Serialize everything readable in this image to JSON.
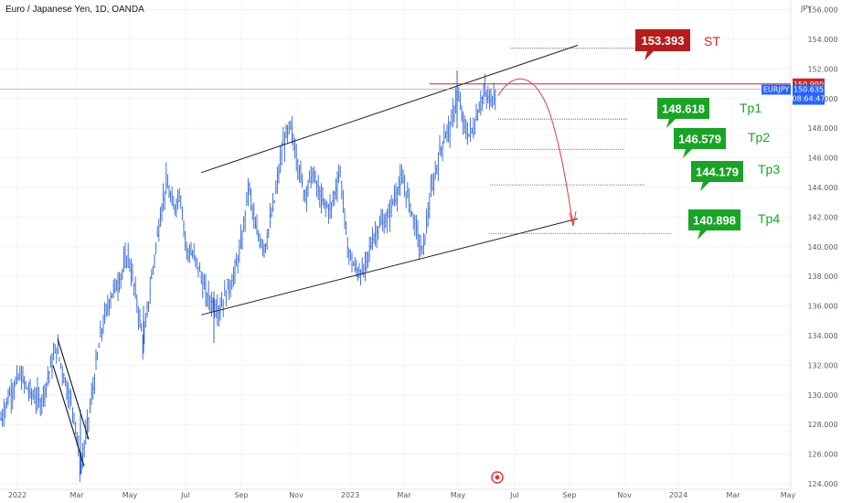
{
  "chart_data": {
    "type": "bar",
    "title": "Euro / Japanese Yen, 1D, OANDA",
    "currency": "JPY",
    "x_tick_labels": [
      "2022",
      "Mar",
      "May",
      "Jul",
      "Sep",
      "Nov",
      "2023",
      "Mar",
      "May",
      "Jul",
      "Sep",
      "Nov",
      "2024",
      "Mar",
      "May"
    ],
    "y_tick_labels": [
      "156.000",
      "154.000",
      "152.000",
      "150.000",
      "148.000",
      "146.000",
      "144.000",
      "142.000",
      "140.000",
      "138.000",
      "136.000",
      "134.000",
      "132.000",
      "130.000",
      "128.000",
      "126.000",
      "124.000"
    ],
    "ylim": [
      123.5,
      157
    ],
    "price_path": [
      [
        0,
        128.2
      ],
      [
        10,
        130.0
      ],
      [
        22,
        131.3
      ],
      [
        32,
        130.2
      ],
      [
        45,
        129.5
      ],
      [
        55,
        131.8
      ],
      [
        62,
        133.2
      ],
      [
        72,
        130.8
      ],
      [
        82,
        128.5
      ],
      [
        88,
        124.9
      ],
      [
        94,
        127.2
      ],
      [
        102,
        130.5
      ],
      [
        110,
        134.0
      ],
      [
        120,
        136.5
      ],
      [
        132,
        138.0
      ],
      [
        140,
        139.5
      ],
      [
        150,
        136.2
      ],
      [
        157,
        133.4
      ],
      [
        165,
        137.5
      ],
      [
        175,
        142.0
      ],
      [
        182,
        144.3
      ],
      [
        190,
        142.5
      ],
      [
        197,
        143.8
      ],
      [
        204,
        139.8
      ],
      [
        210,
        139.5
      ],
      [
        218,
        138.5
      ],
      [
        225,
        136.8
      ],
      [
        232,
        136.2
      ],
      [
        240,
        135.8
      ],
      [
        248,
        137.0
      ],
      [
        256,
        138.0
      ],
      [
        265,
        140.5
      ],
      [
        272,
        144.2
      ],
      [
        280,
        141.0
      ],
      [
        290,
        140.0
      ],
      [
        300,
        143.0
      ],
      [
        310,
        147.0
      ],
      [
        318,
        148.0
      ],
      [
        325,
        146.0
      ],
      [
        333,
        143.5
      ],
      [
        342,
        145.0
      ],
      [
        352,
        143.0
      ],
      [
        362,
        142.5
      ],
      [
        372,
        145.2
      ],
      [
        380,
        140.0
      ],
      [
        388,
        138.5
      ],
      [
        398,
        138.2
      ],
      [
        407,
        140.5
      ],
      [
        416,
        141.5
      ],
      [
        424,
        141.8
      ],
      [
        432,
        143.5
      ],
      [
        440,
        144.5
      ],
      [
        448,
        143.0
      ],
      [
        456,
        141.0
      ],
      [
        462,
        139.5
      ],
      [
        470,
        143.0
      ],
      [
        478,
        145.5
      ],
      [
        486,
        147.5
      ],
      [
        494,
        148.2
      ],
      [
        500,
        150.5
      ],
      [
        506,
        148.5
      ],
      [
        512,
        147.5
      ],
      [
        518,
        148.0
      ],
      [
        524,
        149.5
      ],
      [
        530,
        150.4
      ],
      [
        536,
        149.8
      ],
      [
        543,
        150.6
      ]
    ],
    "current_price": "150.635",
    "current_symbol": "EURJPY",
    "countdown": "08:64:47",
    "resistance_price": "150.990",
    "stop": {
      "value": "153.393",
      "name": "ST"
    },
    "targets": [
      {
        "name": "Tp1",
        "value": "148.618"
      },
      {
        "name": "Tp2",
        "value": "146.579"
      },
      {
        "name": "Tp3",
        "value": "144.179"
      },
      {
        "name": "Tp4",
        "value": "140.898"
      }
    ],
    "channel": {
      "upper": [
        [
          220,
          145.0
        ],
        [
          632,
          153.6
        ]
      ],
      "lower": [
        [
          220,
          135.4
        ],
        [
          632,
          141.9
        ]
      ]
    },
    "flag_lines": [
      [
        [
          63,
          133.8
        ],
        [
          97,
          127.0
        ]
      ],
      [
        [
          58,
          132.0
        ],
        [
          92,
          125.2
        ]
      ]
    ],
    "colors": {
      "candle": "#2f63d6",
      "stop_badge": "#b71c1c",
      "target_badge": "#1aa327",
      "target_label": "#1aa327",
      "stop_label": "#c62828",
      "resistance": "#c62828",
      "current_badge": "#2962ff",
      "price_line": "#9aa8d6",
      "projection": "#e53935"
    },
    "icons": {
      "event_marker": "target-event-icon"
    }
  }
}
